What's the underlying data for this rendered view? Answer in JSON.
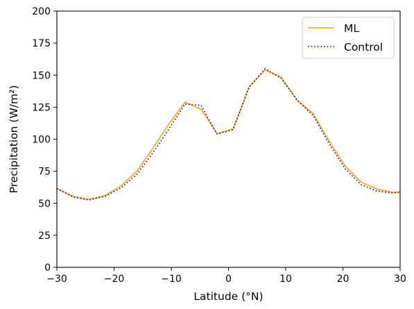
{
  "chart_data": {
    "type": "line",
    "title": "",
    "xlabel": "Latitude (°N)",
    "ylabel": "Precipitation (W/m²)",
    "xlim": [
      -30,
      30
    ],
    "ylim": [
      0,
      200
    ],
    "xticks": [
      -30,
      -20,
      -10,
      0,
      10,
      20,
      30
    ],
    "yticks": [
      0,
      25,
      50,
      75,
      100,
      125,
      150,
      175,
      200
    ],
    "grid": false,
    "legend_position": "top-right",
    "series": [
      {
        "name": "ML",
        "color": "#FFA500",
        "style": "solid",
        "x": [
          -30,
          -27.2,
          -24.4,
          -21.6,
          -18.8,
          -16.0,
          -13.2,
          -10.4,
          -7.6,
          -4.8,
          -2.0,
          0.8,
          3.6,
          6.4,
          9.2,
          12.0,
          14.8,
          17.6,
          20.4,
          23.2,
          26.0,
          28.8,
          30
        ],
        "y": [
          61.5,
          55.5,
          53,
          56,
          63.5,
          75,
          93,
          112,
          129,
          123.5,
          104.5,
          108,
          141,
          154,
          148.5,
          130.5,
          120,
          98.5,
          79,
          66.5,
          61,
          58.5,
          59
        ]
      },
      {
        "name": "Control",
        "color": "#0000CC",
        "style": "dotted",
        "x": [
          -30,
          -27.2,
          -24.4,
          -21.6,
          -18.8,
          -16.0,
          -13.2,
          -10.4,
          -7.6,
          -4.8,
          -2.0,
          0.8,
          3.6,
          6.4,
          9.2,
          12.0,
          14.8,
          17.6,
          20.4,
          23.2,
          26.0,
          28.8,
          30
        ],
        "y": [
          61.5,
          55,
          52.5,
          55.5,
          62,
          72.5,
          89.5,
          108,
          127.5,
          126.5,
          104,
          107.5,
          140.5,
          155,
          147.5,
          130.5,
          118.5,
          96.5,
          77,
          64.5,
          59.5,
          58,
          58.5
        ]
      }
    ]
  }
}
